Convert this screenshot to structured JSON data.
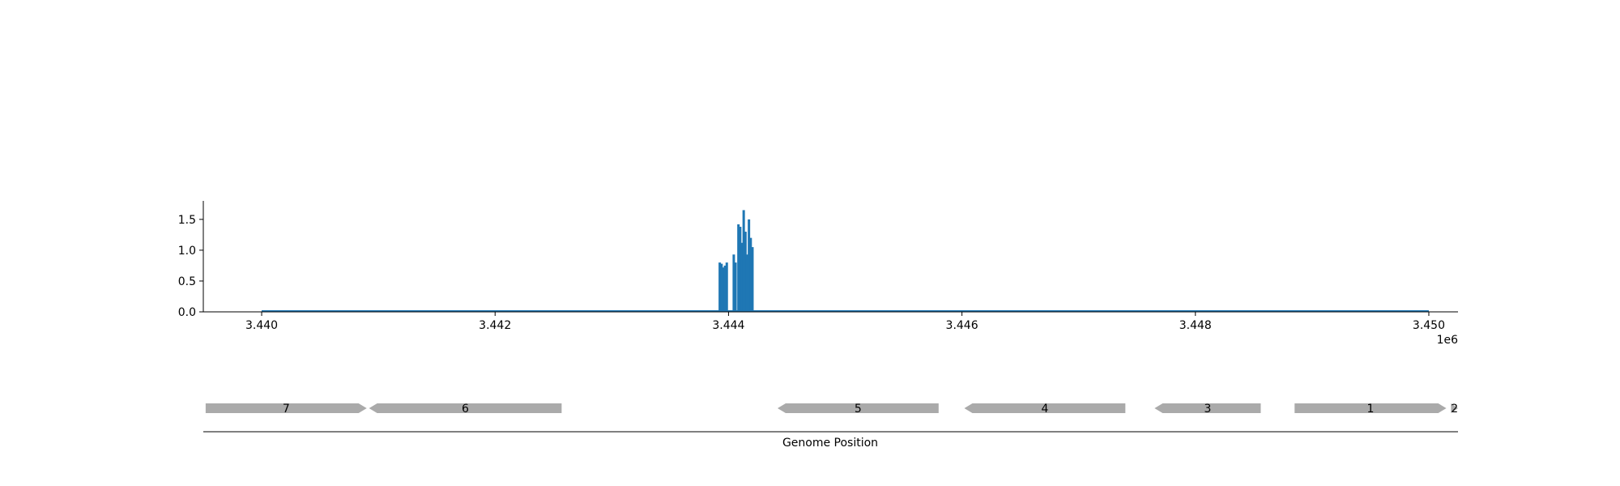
{
  "chart_data": [
    {
      "type": "bar",
      "title": "",
      "xlabel": "",
      "ylabel": "",
      "x_offset_label": "1e6",
      "xlim": [
        3439500,
        3450250
      ],
      "ylim": [
        0,
        1.8
      ],
      "x_ticks": [
        3440000,
        3442000,
        3444000,
        3446000,
        3448000,
        3450000
      ],
      "x_tick_labels": [
        "3.440",
        "3.442",
        "3.444",
        "3.446",
        "3.448",
        "3.450"
      ],
      "y_ticks": [
        0.0,
        0.5,
        1.0,
        1.5
      ],
      "y_tick_labels": [
        "0.0",
        "0.5",
        "1.0",
        "1.5"
      ],
      "baseline_range": [
        3440000,
        3450000
      ],
      "color": "#1f77b4",
      "grid": false,
      "legend": "none",
      "series": [
        {
          "x": [
            3443925,
            3443940,
            3443955,
            3443970,
            3443985,
            3444045,
            3444060,
            3444085,
            3444100,
            3444115,
            3444130,
            3444145,
            3444160,
            3444175,
            3444190,
            3444205
          ],
          "values": [
            0.8,
            0.78,
            0.72,
            0.75,
            0.8,
            0.93,
            0.8,
            1.42,
            1.38,
            1.12,
            1.65,
            1.3,
            0.93,
            1.5,
            1.2,
            1.05
          ]
        }
      ]
    },
    {
      "type": "gene-track",
      "xlabel": "Genome Position",
      "xlim": [
        3439500,
        3450250
      ],
      "color": "#aaaaaa",
      "genes": [
        {
          "label": "7",
          "start": 3439520,
          "end": 3440900,
          "strand": "+"
        },
        {
          "label": "6",
          "start": 3440920,
          "end": 3442570,
          "strand": "-"
        },
        {
          "label": "5",
          "start": 3444420,
          "end": 3445800,
          "strand": "-"
        },
        {
          "label": "4",
          "start": 3446020,
          "end": 3447400,
          "strand": "-"
        },
        {
          "label": "3",
          "start": 3447650,
          "end": 3448560,
          "strand": "-"
        },
        {
          "label": "1",
          "start": 3448850,
          "end": 3450150,
          "strand": "+"
        },
        {
          "label": "2",
          "start": 3450190,
          "end": 3450250,
          "strand": "+"
        }
      ]
    }
  ]
}
